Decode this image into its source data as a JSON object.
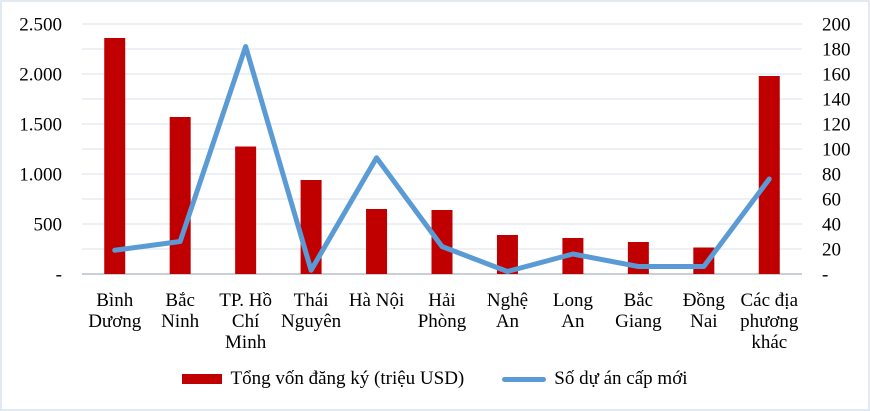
{
  "chart_data": {
    "type": "bar",
    "subtype": "combo bar + line, dual axis",
    "categories": [
      "Bình Dương",
      "Bắc Ninh",
      "TP. Hồ Chí Minh",
      "Thái Nguyên",
      "Hà Nội",
      "Hải Phòng",
      "Nghệ An",
      "Long An",
      "Bắc Giang",
      "Đồng Nai",
      "Các địa phương khác"
    ],
    "category_label_lines": [
      [
        "Bình",
        "Dương"
      ],
      [
        "Bắc",
        "Ninh"
      ],
      [
        "TP. Hồ",
        "Chí",
        "Minh"
      ],
      [
        "Thái",
        "Nguyên"
      ],
      [
        "Hà Nội"
      ],
      [
        "Hải",
        "Phòng"
      ],
      [
        "Nghệ",
        "An"
      ],
      [
        "Long",
        "An"
      ],
      [
        "Bắc",
        "Giang"
      ],
      [
        "Đồng",
        "Nai"
      ],
      [
        "Các địa",
        "phương",
        "khác"
      ]
    ],
    "series": [
      {
        "name": "Tổng vốn đăng ký (triệu USD)",
        "type": "bar",
        "axis": "left",
        "color": "#C00000",
        "values": [
          2360,
          1570,
          1275,
          940,
          650,
          640,
          390,
          360,
          320,
          265,
          1980
        ]
      },
      {
        "name": "Số dự án cấp mới",
        "type": "line",
        "axis": "right",
        "color": "#5B9BD5",
        "values": [
          19,
          26,
          182,
          3,
          93,
          22,
          2,
          16,
          6,
          6,
          76
        ]
      }
    ],
    "left_axis": {
      "min": 0,
      "max": 2500,
      "tick_values": [
        0,
        500,
        1000,
        1500,
        2000,
        2500
      ],
      "tick_labels": [
        "-",
        "500",
        "1.000",
        "1.500",
        "2.000",
        "2.500"
      ]
    },
    "right_axis": {
      "min": 0,
      "max": 200,
      "tick_values": [
        0,
        20,
        40,
        60,
        80,
        100,
        120,
        140,
        160,
        180,
        200
      ],
      "tick_labels": [
        "-",
        "20",
        "40",
        "60",
        "80",
        "100",
        "120",
        "140",
        "160",
        "180",
        "200"
      ]
    },
    "title": "",
    "xlabel": "",
    "ylabel": "",
    "grid": "horizontal gridlines at every right-axis tick (20) / 250 left-axis units",
    "legend_position": "bottom",
    "colors": {
      "bar": "#C00000",
      "line": "#5B9BD5",
      "gridline": "#dbe1e9",
      "axis_line": "#b9bfc9",
      "text": "#000000",
      "frame_border": "#e2e9f2"
    }
  }
}
